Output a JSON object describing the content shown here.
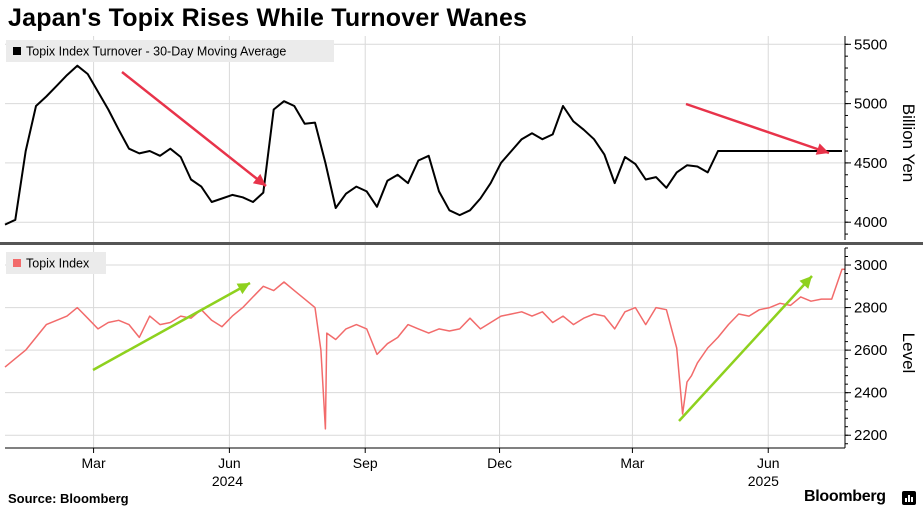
{
  "title": "Japan's Topix Rises While Turnover Wanes",
  "source": "Source: Bloomberg",
  "brand": "Bloomberg",
  "colors": {
    "turnover_line": "#000000",
    "topix_line": "#f26b6b",
    "arrow_red": "#e8334a",
    "arrow_green": "#8ed11e",
    "legend_bg": "#ebebeb",
    "grid": "#d9d9d9"
  },
  "chart_data": [
    {
      "type": "line",
      "title": "",
      "legend": "Topix Index Turnover - 30-Day Moving Average",
      "legend_placement": "top-left",
      "ylabel": "Billion Yen",
      "ylim": [
        3850,
        5570
      ],
      "yticks": [
        4000,
        4500,
        5000,
        5500
      ],
      "grid": true,
      "series": [
        {
          "name": "Topix Index Turnover - 30-Day Moving Average",
          "x": [
            "2024-01-01",
            "2024-01-08",
            "2024-01-15",
            "2024-01-22",
            "2024-01-29",
            "2024-02-05",
            "2024-02-12",
            "2024-02-19",
            "2024-02-26",
            "2024-03-04",
            "2024-03-11",
            "2024-03-18",
            "2024-03-25",
            "2024-04-01",
            "2024-04-08",
            "2024-04-15",
            "2024-04-22",
            "2024-04-29",
            "2024-05-06",
            "2024-05-13",
            "2024-05-20",
            "2024-05-27",
            "2024-06-03",
            "2024-06-10",
            "2024-06-17",
            "2024-06-24",
            "2024-07-01",
            "2024-07-08",
            "2024-07-15",
            "2024-07-22",
            "2024-07-29",
            "2024-08-05",
            "2024-08-12",
            "2024-08-19",
            "2024-08-26",
            "2024-09-02",
            "2024-09-09",
            "2024-09-16",
            "2024-09-23",
            "2024-09-30",
            "2024-10-07",
            "2024-10-14",
            "2024-10-21",
            "2024-10-28",
            "2024-11-04",
            "2024-11-11",
            "2024-11-18",
            "2024-11-25",
            "2024-12-02",
            "2024-12-09",
            "2024-12-16",
            "2024-12-23",
            "2024-12-30",
            "2025-01-06",
            "2025-01-13",
            "2025-01-20",
            "2025-01-27",
            "2025-02-03",
            "2025-02-10",
            "2025-02-17",
            "2025-02-24",
            "2025-03-03",
            "2025-03-10",
            "2025-03-17",
            "2025-03-24",
            "2025-03-31",
            "2025-04-07",
            "2025-04-14",
            "2025-04-21",
            "2025-04-28",
            "2025-05-05",
            "2025-05-12",
            "2025-05-19",
            "2025-05-26",
            "2025-06-02",
            "2025-06-09",
            "2025-06-16",
            "2025-06-23",
            "2025-06-30",
            "2025-07-07",
            "2025-07-14",
            "2025-07-21"
          ],
          "values": [
            3980,
            4020,
            4600,
            4980,
            5060,
            5150,
            5240,
            5320,
            5250,
            5100,
            4950,
            4780,
            4620,
            4580,
            4600,
            4560,
            4620,
            4550,
            4360,
            4300,
            4170,
            4200,
            4230,
            4210,
            4170,
            4250,
            4950,
            5020,
            4980,
            4830,
            4840,
            4500,
            4120,
            4240,
            4300,
            4260,
            4130,
            4350,
            4400,
            4330,
            4520,
            4560,
            4260,
            4100,
            4060,
            4100,
            4200,
            4330,
            4500,
            4600,
            4700,
            4750,
            4700,
            4740,
            4980,
            4850,
            4780,
            4700,
            4570,
            4330,
            4550,
            4490,
            4360,
            4380,
            4290,
            4420,
            4480,
            4470,
            4420,
            4600,
            4600,
            4600,
            4600,
            4600,
            4600,
            4600,
            4600,
            4600,
            4600,
            4600,
            4600,
            4600
          ]
        }
      ]
    },
    {
      "type": "line",
      "title": "",
      "legend": "Topix Index",
      "legend_placement": "top-left",
      "ylabel": "Level",
      "ylim": [
        2140,
        3080
      ],
      "yticks": [
        2200,
        2400,
        2600,
        2800,
        3000
      ],
      "grid": true,
      "series": [
        {
          "name": "Topix Index",
          "x": [
            "2024-01-01",
            "2024-01-08",
            "2024-01-15",
            "2024-01-22",
            "2024-01-29",
            "2024-02-05",
            "2024-02-12",
            "2024-02-19",
            "2024-02-26",
            "2024-03-04",
            "2024-03-11",
            "2024-03-18",
            "2024-03-25",
            "2024-04-01",
            "2024-04-08",
            "2024-04-15",
            "2024-04-22",
            "2024-04-29",
            "2024-05-06",
            "2024-05-13",
            "2024-05-20",
            "2024-05-27",
            "2024-06-03",
            "2024-06-10",
            "2024-06-17",
            "2024-06-24",
            "2024-07-01",
            "2024-07-08",
            "2024-07-15",
            "2024-07-22",
            "2024-07-29",
            "2024-08-02",
            "2024-08-05",
            "2024-08-06",
            "2024-08-12",
            "2024-08-19",
            "2024-08-26",
            "2024-09-02",
            "2024-09-09",
            "2024-09-16",
            "2024-09-23",
            "2024-09-30",
            "2024-10-07",
            "2024-10-14",
            "2024-10-21",
            "2024-10-28",
            "2024-11-04",
            "2024-11-11",
            "2024-11-18",
            "2024-11-25",
            "2024-12-02",
            "2024-12-09",
            "2024-12-16",
            "2024-12-23",
            "2024-12-30",
            "2025-01-06",
            "2025-01-13",
            "2025-01-20",
            "2025-01-27",
            "2025-02-03",
            "2025-02-10",
            "2025-02-17",
            "2025-02-24",
            "2025-03-03",
            "2025-03-10",
            "2025-03-17",
            "2025-03-24",
            "2025-03-31",
            "2025-04-04",
            "2025-04-07",
            "2025-04-10",
            "2025-04-14",
            "2025-04-21",
            "2025-04-28",
            "2025-05-05",
            "2025-05-12",
            "2025-05-19",
            "2025-05-26",
            "2025-06-02",
            "2025-06-09",
            "2025-06-16",
            "2025-06-23",
            "2025-06-30",
            "2025-07-07",
            "2025-07-14",
            "2025-07-21",
            "2025-07-23"
          ],
          "values": [
            2520,
            2560,
            2600,
            2660,
            2720,
            2740,
            2760,
            2800,
            2750,
            2700,
            2730,
            2740,
            2720,
            2660,
            2760,
            2720,
            2730,
            2760,
            2750,
            2790,
            2740,
            2710,
            2760,
            2800,
            2850,
            2900,
            2880,
            2920,
            2880,
            2840,
            2800,
            2600,
            2230,
            2680,
            2650,
            2700,
            2720,
            2700,
            2580,
            2630,
            2660,
            2720,
            2700,
            2680,
            2700,
            2690,
            2700,
            2750,
            2700,
            2730,
            2760,
            2770,
            2780,
            2760,
            2780,
            2730,
            2760,
            2720,
            2750,
            2770,
            2760,
            2700,
            2780,
            2800,
            2720,
            2800,
            2790,
            2610,
            2300,
            2450,
            2480,
            2540,
            2610,
            2660,
            2720,
            2770,
            2760,
            2790,
            2800,
            2820,
            2810,
            2850,
            2830,
            2840,
            2840,
            2980,
            2980
          ]
        }
      ]
    }
  ],
  "x_axis": {
    "month_labels": [
      "Mar",
      "Jun",
      "Sep",
      "Dec",
      "Mar",
      "Jun"
    ],
    "year_labels": [
      "2024",
      "2025"
    ]
  }
}
